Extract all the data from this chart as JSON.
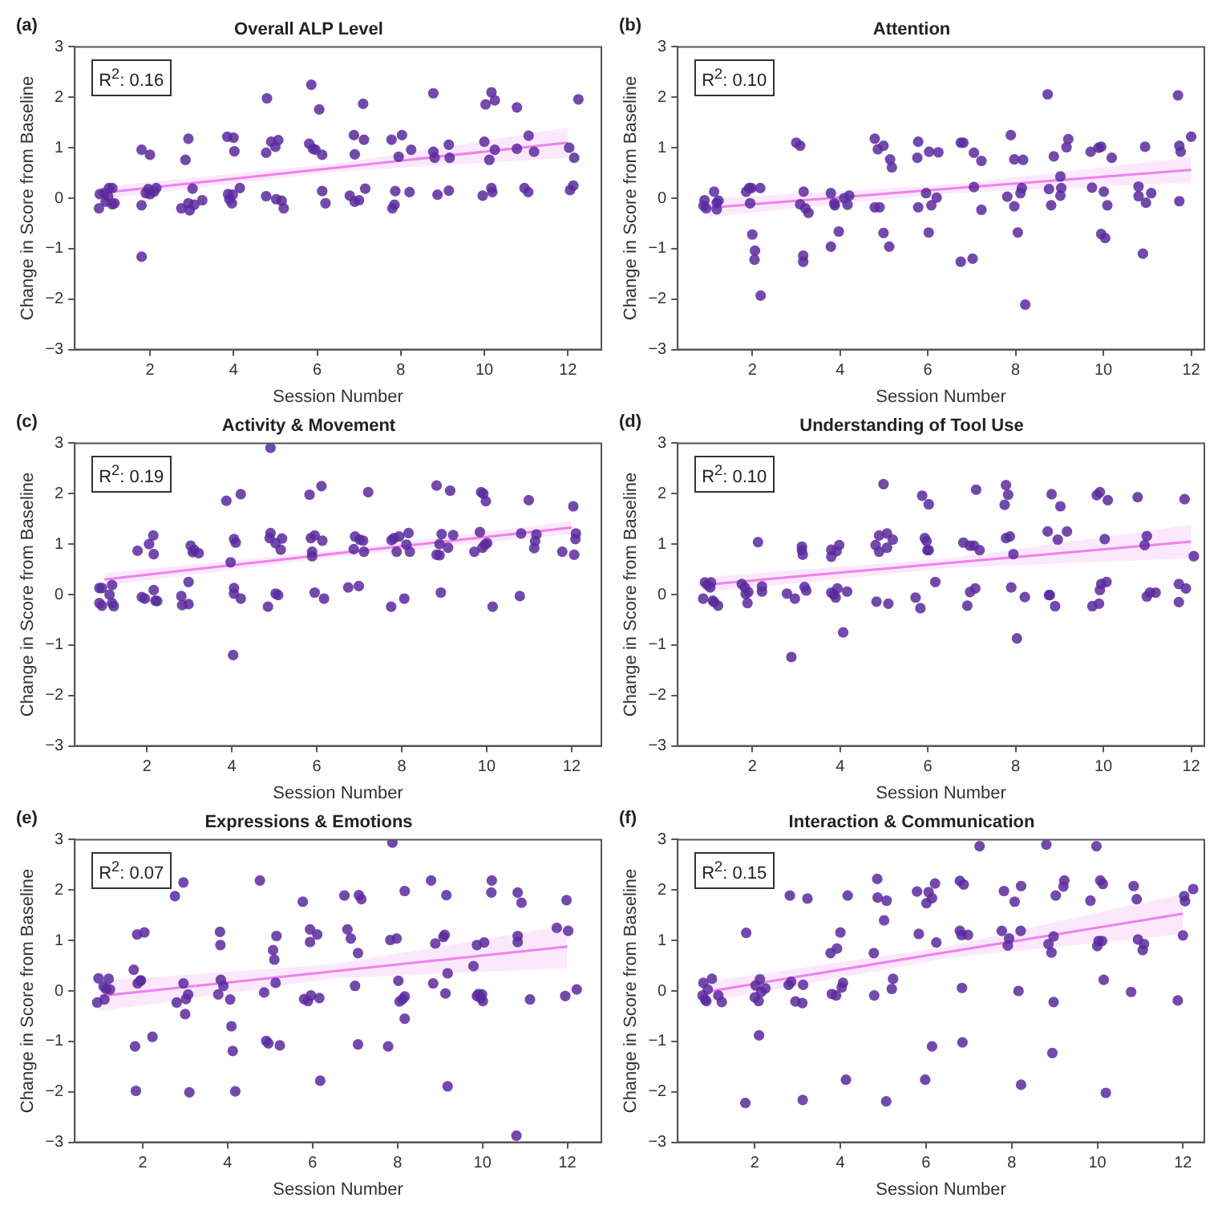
{
  "chart_data": [
    {
      "type": "scatter",
      "title": "Overall ALP Level",
      "xlabel": "Session Number",
      "ylabel": "Change in Score from Baseline",
      "annotations": [
        "(a)",
        "R$^{2}$: 0.16"
      ],
      "xlim": [
        0.2,
        12.8
      ],
      "ylim": [
        -3,
        3
      ],
      "xticks": [
        2,
        4,
        6,
        8,
        10,
        12
      ],
      "yticks": [
        -3,
        -2,
        -1,
        0,
        1,
        2,
        3
      ],
      "marker": "circle",
      "series": [
        {
          "color": "#5b2a9e",
          "x": [
            0.78,
            0.8,
            0.9,
            0.94,
            1.0,
            1.02,
            1.1,
            1.1,
            1.15,
            1.8,
            1.8,
            1.8,
            1.9,
            1.96,
            2.0,
            2.0,
            2.1,
            2.15,
            2.75,
            2.85,
            2.92,
            2.92,
            2.95,
            3.02,
            3.06,
            3.25,
            3.85,
            3.87,
            3.9,
            3.96,
            3.98,
            4.0,
            4.02,
            4.15,
            4.8,
            4.78,
            4.78,
            4.9,
            5.0,
            5.02,
            5.07,
            5.15,
            5.2,
            5.86,
            5.81,
            5.9,
            5.96,
            6.05,
            6.12,
            6.12,
            6.2,
            6.78,
            6.88,
            6.9,
            6.9,
            7.0,
            7.1,
            7.12,
            7.15,
            7.78,
            7.8,
            7.85,
            7.87,
            7.95,
            8.03,
            8.25,
            8.21,
            8.78,
            8.78,
            8.81,
            8.88,
            9.15,
            9.17,
            9.15,
            10.0,
            9.96,
            10.03,
            10.12,
            10.17,
            10.19,
            10.17,
            10.25,
            10.25,
            10.78,
            10.78,
            10.96,
            11.06,
            11.05,
            11.19,
            12.03,
            12.05,
            12.13,
            12.15,
            12.25
          ],
          "values": [
            -0.2,
            0.08,
            0.1,
            -0.07,
            0.03,
            0.2,
            0.2,
            -0.12,
            -0.1,
            0.96,
            -0.14,
            -1.16,
            0.1,
            0.18,
            0.86,
            0.08,
            0.13,
            0.2,
            -0.2,
            0.76,
            1.18,
            -0.1,
            -0.24,
            0.19,
            -0.13,
            -0.04,
            1.22,
            0.08,
            -0.02,
            -0.1,
            0.07,
            1.2,
            0.93,
            0.2,
            1.98,
            0.9,
            0.04,
            1.12,
            1.02,
            -0.02,
            1.15,
            -0.05,
            -0.2,
            2.25,
            1.08,
            0.98,
            0.96,
            1.76,
            0.86,
            0.14,
            -0.1,
            0.05,
            1.25,
            0.87,
            -0.07,
            -0.04,
            1.87,
            1.16,
            0.19,
            1.16,
            -0.2,
            -0.13,
            0.14,
            0.82,
            1.25,
            0.96,
            0.12,
            2.08,
            0.92,
            0.8,
            0.07,
            1.06,
            0.8,
            0.15,
            1.12,
            0.05,
            1.86,
            0.76,
            0.2,
            0.12,
            2.1,
            1.94,
            0.96,
            1.8,
            0.98,
            0.2,
            1.24,
            0.12,
            0.92,
            1.0,
            0.16,
            0.25,
            0.8,
            1.96
          ]
        },
        {
          "type": "line",
          "color": "#ee82ee",
          "x": [
            1,
            6.5,
            12
          ],
          "marker": "none",
          "values": [
            0.12,
            0.61,
            1.1
          ],
          "lower": [
            0.0,
            0.53,
            0.8
          ],
          "upper": [
            0.24,
            0.69,
            1.4
          ]
        }
      ]
    },
    {
      "type": "scatter",
      "title": "Attention",
      "xlabel": "Session Number",
      "ylabel": "Change in Score from Baseline",
      "annotations": [
        "(b)",
        "R$^{2}$: 0.10"
      ],
      "xlim": [
        0.3,
        12.3
      ],
      "ylim": [
        -3,
        3
      ],
      "xticks": [
        2,
        4,
        6,
        8,
        10,
        12
      ],
      "yticks": [
        -3,
        -2,
        -1,
        0,
        1,
        2,
        3
      ],
      "marker": "circle",
      "series": [
        {
          "color": "#5b2a9e",
          "x": [
            0.91,
            0.89,
            0.95,
            1.13,
            1.19,
            1.23,
            1.19,
            1.86,
            1.93,
            1.98,
            1.95,
            2.0,
            2.06,
            2.05,
            2.18,
            2.19,
            3.0,
            3.09,
            3.09,
            3.17,
            3.16,
            3.16,
            3.21,
            3.28,
            3.79,
            3.79,
            3.87,
            3.88,
            3.97,
            4.09,
            4.17,
            4.21,
            4.79,
            4.79,
            4.86,
            4.9,
            4.99,
            4.99,
            5.12,
            5.14,
            5.18,
            5.76,
            5.78,
            5.78,
            5.96,
            6.02,
            6.03,
            6.08,
            6.2,
            6.24,
            6.75,
            6.81,
            6.75,
            7.02,
            7.05,
            7.05,
            7.22,
            7.22,
            7.81,
            7.89,
            7.97,
            7.97,
            8.05,
            8.11,
            8.14,
            8.17,
            8.22,
            8.73,
            8.76,
            8.81,
            8.87,
            9.02,
            9.02,
            9.04,
            9.16,
            9.2,
            9.71,
            9.74,
            9.89,
            9.95,
            9.95,
            10.01,
            10.04,
            10.09,
            10.19,
            10.8,
            10.8,
            10.9,
            10.95,
            10.97,
            11.09,
            11.7,
            11.73,
            11.76,
            11.73,
            12.0
          ],
          "values": [
            -0.04,
            -0.15,
            -0.2,
            0.13,
            -0.09,
            -0.05,
            -0.22,
            0.13,
            0.2,
            0.2,
            -0.1,
            -0.72,
            -1.04,
            -1.22,
            0.2,
            -1.93,
            1.1,
            1.04,
            -0.12,
            0.13,
            -1.14,
            -1.26,
            -0.2,
            -0.29,
            -0.96,
            0.1,
            -0.1,
            -0.14,
            -0.66,
            0.0,
            -0.13,
            0.05,
            1.18,
            -0.18,
            0.97,
            -0.18,
            1.04,
            -0.69,
            -0.96,
            0.77,
            0.61,
            0.8,
            1.12,
            -0.18,
            0.1,
            -0.68,
            0.92,
            -0.14,
            0.01,
            0.91,
            1.1,
            1.1,
            -1.26,
            -1.2,
            0.9,
            0.22,
            0.74,
            -0.23,
            0.03,
            1.25,
            0.77,
            -0.16,
            -0.68,
            0.1,
            0.2,
            0.76,
            -2.11,
            2.06,
            0.18,
            -0.14,
            0.83,
            0.43,
            0.05,
            0.2,
            1.01,
            1.17,
            0.92,
            0.21,
            1.0,
            1.02,
            -0.71,
            0.13,
            -0.79,
            -0.14,
            0.8,
            0.23,
            0.04,
            -1.1,
            1.02,
            -0.09,
            0.1,
            2.04,
            1.04,
            0.92,
            -0.06,
            1.22
          ]
        },
        {
          "type": "line",
          "color": "#ee82ee",
          "x": [
            1,
            6.5,
            12
          ],
          "marker": "none",
          "values": [
            -0.19,
            0.19,
            0.56
          ],
          "lower": [
            -0.37,
            0.1,
            0.31
          ],
          "upper": [
            -0.01,
            0.27,
            0.81
          ]
        }
      ]
    },
    {
      "type": "scatter",
      "title": "Activity & Movement",
      "xlabel": "Session Number",
      "ylabel": "Change in Score from Baseline",
      "annotations": [
        "(c)",
        "R$^{2}$: 0.19"
      ],
      "xlim": [
        0.3,
        12.7
      ],
      "ylim": [
        -3,
        3
      ],
      "xticks": [
        2,
        4,
        6,
        8,
        10,
        12
      ],
      "yticks": [
        -3,
        -2,
        -1,
        0,
        1,
        2,
        3
      ],
      "marker": "circle",
      "series": [
        {
          "color": "#5b2a9e",
          "x": [
            0.88,
            0.94,
            0.88,
            0.94,
            1.12,
            1.18,
            1.18,
            1.22,
            1.78,
            1.88,
            1.95,
            2.05,
            2.15,
            2.16,
            2.16,
            2.2,
            2.24,
            2.81,
            2.83,
            2.98,
            2.98,
            3.03,
            3.08,
            3.11,
            3.22,
            3.87,
            3.97,
            4.05,
            4.09,
            4.05,
            4.05,
            4.03,
            4.21,
            4.21,
            4.85,
            4.91,
            4.91,
            4.89,
            5.03,
            5.03,
            5.09,
            5.15,
            5.18,
            5.83,
            5.86,
            5.89,
            5.89,
            5.95,
            5.95,
            6.11,
            6.13,
            6.17,
            6.74,
            6.87,
            6.9,
            6.99,
            7.01,
            7.09,
            7.11,
            7.21,
            7.75,
            7.76,
            7.82,
            7.88,
            7.94,
            8.06,
            8.11,
            8.16,
            8.19,
            8.82,
            8.82,
            8.89,
            8.89,
            8.92,
            8.94,
            9.09,
            9.14,
            9.21,
            9.71,
            9.84,
            9.87,
            9.9,
            9.92,
            9.96,
            9.98,
            10.01,
            10.14,
            10.78,
            10.81,
            10.99,
            11.12,
            11.14,
            11.17,
            11.78,
            12.04,
            12.06,
            12.09,
            12.1
          ],
          "values": [
            0.13,
            0.13,
            -0.17,
            -0.22,
            0.0,
            0.19,
            -0.17,
            -0.23,
            0.87,
            -0.05,
            -0.08,
            1.0,
            1.17,
            0.8,
            0.09,
            -0.12,
            -0.13,
            -0.03,
            -0.21,
            0.25,
            -0.19,
            0.97,
            0.84,
            0.89,
            0.82,
            1.86,
            0.64,
            1.1,
            1.03,
            0.13,
            0.02,
            -1.2,
            1.99,
            -0.08,
            -0.24,
            2.91,
            1.22,
            1.12,
            1.02,
            0.02,
            -0.01,
            0.89,
            1.11,
            1.98,
            1.12,
            0.85,
            0.76,
            1.17,
            0.04,
            2.15,
            1.07,
            -0.08,
            0.14,
            0.9,
            1.15,
            0.17,
            1.09,
            1.07,
            0.85,
            2.03,
            -0.24,
            1.08,
            1.12,
            0.85,
            1.15,
            -0.08,
            0.99,
            1.22,
            0.85,
            2.16,
            0.79,
            0.78,
            1.0,
            0.04,
            1.2,
            0.93,
            2.06,
            1.18,
            0.85,
            1.24,
            2.03,
            0.93,
            2.0,
            0.99,
            1.85,
            1.02,
            -0.24,
            -0.03,
            1.21,
            1.87,
            0.92,
            1.06,
            1.19,
            0.85,
            1.75,
            0.79,
            1.1,
            1.21
          ]
        },
        {
          "type": "line",
          "color": "#ee82ee",
          "x": [
            1,
            6.5,
            12
          ],
          "marker": "none",
          "values": [
            0.3,
            0.82,
            1.33
          ],
          "lower": [
            0.18,
            0.75,
            1.2
          ],
          "upper": [
            0.42,
            0.88,
            1.46
          ]
        }
      ]
    },
    {
      "type": "scatter",
      "title": "Understanding of Tool Use",
      "xlabel": "Session Number",
      "ylabel": "Change in Score from Baseline",
      "annotations": [
        "(d)",
        "R$^{2}$: 0.10"
      ],
      "xlim": [
        0.3,
        12.3
      ],
      "ylim": [
        -3,
        3
      ],
      "xticks": [
        2,
        4,
        6,
        8,
        10,
        12
      ],
      "yticks": [
        -3,
        -2,
        -1,
        0,
        1,
        2,
        3
      ],
      "marker": "circle",
      "series": [
        {
          "color": "#5b2a9e",
          "x": [
            0.88,
            0.92,
            0.98,
            1.04,
            1.06,
            1.1,
            1.13,
            1.22,
            1.76,
            1.83,
            1.85,
            1.89,
            1.91,
            2.13,
            2.22,
            2.22,
            2.79,
            2.89,
            2.97,
            3.13,
            3.13,
            3.15,
            3.19,
            3.23,
            3.8,
            3.8,
            3.8,
            3.86,
            3.9,
            3.92,
            3.94,
            3.98,
            4.07,
            4.16,
            4.81,
            4.83,
            4.89,
            4.89,
            4.99,
            5.07,
            5.07,
            5.1,
            5.2,
            5.72,
            5.83,
            5.87,
            5.93,
            5.97,
            5.99,
            6.02,
            6.02,
            6.17,
            6.81,
            6.9,
            6.96,
            6.96,
            7.05,
            7.08,
            7.1,
            7.18,
            7.75,
            7.78,
            7.78,
            7.83,
            7.87,
            7.9,
            7.95,
            8.03,
            8.21,
            8.73,
            8.76,
            8.78,
            8.82,
            8.9,
            8.96,
            9.02,
            9.17,
            9.75,
            9.85,
            9.9,
            9.92,
            9.92,
            9.95,
            10.03,
            10.07,
            10.1,
            10.78,
            10.94,
            10.99,
            10.99,
            11.06,
            11.19,
            11.72,
            11.72,
            11.85,
            11.88,
            12.06
          ],
          "values": [
            -0.08,
            0.24,
            0.19,
            0.14,
            0.24,
            -0.12,
            -0.15,
            -0.22,
            0.21,
            0.14,
            0.01,
            -0.17,
            0.05,
            1.04,
            0.16,
            0.06,
            0.02,
            -1.24,
            -0.08,
            0.95,
            0.88,
            0.79,
            0.15,
            0.08,
            0.89,
            0.75,
            0.04,
            0.0,
            -0.06,
            0.86,
            0.12,
            0.98,
            -0.75,
            0.06,
            0.98,
            -0.14,
            1.17,
            0.85,
            2.19,
            1.21,
            0.93,
            -0.18,
            1.09,
            -0.06,
            -0.27,
            1.96,
            1.12,
            1.06,
            0.88,
            0.88,
            1.79,
            0.25,
            1.03,
            -0.22,
            0.97,
            0.05,
            0.97,
            0.12,
            2.08,
            0.88,
            1.78,
            2.17,
            1.12,
            1.98,
            1.15,
            0.14,
            0.8,
            -0.87,
            -0.05,
            1.25,
            -0.01,
            -0.01,
            1.99,
            -0.23,
            1.09,
            1.75,
            1.25,
            -0.23,
            1.97,
            -0.18,
            2.03,
            0.09,
            0.21,
            1.1,
            0.25,
            1.87,
            1.93,
            0.98,
            1.16,
            -0.04,
            0.04,
            0.04,
            -0.15,
            0.21,
            1.89,
            0.12,
            0.76
          ]
        },
        {
          "type": "line",
          "color": "#ee82ee",
          "x": [
            1,
            6.5,
            12
          ],
          "marker": "none",
          "values": [
            0.2,
            0.63,
            1.05
          ],
          "lower": [
            0.05,
            0.53,
            0.72
          ],
          "upper": [
            0.35,
            0.72,
            1.38
          ]
        }
      ]
    },
    {
      "type": "scatter",
      "title": "Expressions & Emotions",
      "xlabel": "Session Number",
      "ylabel": "Change in Score from Baseline",
      "annotations": [
        "(e)",
        "R$^{2}$: 0.07"
      ],
      "xlim": [
        0.4,
        12.8
      ],
      "ylim": [
        -3,
        3
      ],
      "xticks": [
        2,
        4,
        6,
        8,
        10,
        12
      ],
      "yticks": [
        -3,
        -2,
        -1,
        0,
        1,
        2,
        3
      ],
      "marker": "circle",
      "series": [
        {
          "color": "#5b2a9e",
          "x": [
            0.96,
            0.93,
            1.08,
            1.1,
            1.14,
            1.2,
            1.23,
            1.79,
            1.82,
            1.84,
            1.87,
            1.88,
            1.94,
            1.96,
            2.04,
            2.23,
            2.76,
            2.8,
            2.96,
            2.96,
            3.0,
            3.02,
            3.07,
            3.1,
            3.78,
            3.82,
            3.83,
            3.84,
            3.9,
            4.06,
            4.09,
            4.12,
            4.18,
            4.76,
            4.86,
            4.91,
            4.96,
            5.07,
            5.1,
            5.13,
            5.15,
            5.23,
            5.77,
            5.8,
            5.89,
            5.94,
            5.94,
            5.96,
            6.11,
            6.16,
            6.18,
            6.75,
            6.82,
            6.9,
            7.0,
            7.07,
            7.07,
            7.09,
            7.15,
            7.78,
            7.83,
            7.88,
            7.98,
            8.02,
            8.05,
            8.12,
            8.17,
            8.17,
            8.17,
            8.79,
            8.84,
            8.89,
            9.08,
            9.11,
            9.13,
            9.15,
            9.18,
            9.18,
            9.79,
            9.87,
            9.87,
            9.91,
            9.96,
            9.99,
            10.01,
            10.04,
            10.22,
            10.21,
            10.8,
            10.83,
            10.83,
            10.83,
            10.92,
            11.12,
            11.75,
            11.95,
            11.98,
            12.02,
            12.22
          ],
          "values": [
            0.25,
            -0.23,
            0.09,
            -0.17,
            0.04,
            0.24,
            0.03,
            0.42,
            -1.1,
            -1.98,
            1.12,
            0.15,
            0.2,
            0.21,
            1.16,
            -0.91,
            1.88,
            -0.23,
            2.15,
            0.15,
            -0.46,
            -0.16,
            -0.07,
            -2.01,
            -0.07,
            1.17,
            0.91,
            0.22,
            0.1,
            -0.17,
            -0.7,
            -1.19,
            -1.99,
            2.19,
            -0.03,
            -0.99,
            -1.04,
            0.81,
            0.62,
            0.16,
            1.09,
            -1.08,
            1.77,
            -0.16,
            -0.2,
            1.22,
            0.97,
            -0.09,
            1.12,
            -0.14,
            -1.78,
            1.89,
            1.22,
            1.04,
            0.1,
            0.75,
            -1.06,
            1.9,
            1.82,
            -1.1,
            1.01,
            2.94,
            1.04,
            0.2,
            -0.21,
            -0.16,
            1.98,
            -0.11,
            -0.55,
            2.19,
            0.15,
            0.94,
            1.07,
            1.11,
            -0.05,
            1.9,
            -1.89,
            0.35,
            0.49,
            0.91,
            -0.1,
            -0.06,
            -0.14,
            -0.07,
            -0.2,
            0.96,
            2.19,
            1.95,
            -2.87,
            1.95,
            1.09,
            0.97,
            1.75,
            -0.17,
            1.25,
            -0.1,
            1.8,
            1.19,
            0.03
          ]
        },
        {
          "type": "line",
          "color": "#ee82ee",
          "x": [
            1,
            6.5,
            12
          ],
          "marker": "none",
          "values": [
            -0.1,
            0.39,
            0.88
          ],
          "lower": [
            -0.4,
            0.25,
            0.45
          ],
          "upper": [
            0.2,
            0.53,
            1.3
          ]
        }
      ]
    },
    {
      "type": "scatter",
      "title": "Interaction & Communication",
      "xlabel": "Session Number",
      "ylabel": "Change in Score from Baseline",
      "annotations": [
        "(f)",
        "R$^{2}$: 0.15"
      ],
      "xlim": [
        0.2,
        12.5
      ],
      "ylim": [
        -3,
        3
      ],
      "xticks": [
        2,
        4,
        6,
        8,
        10,
        12
      ],
      "yticks": [
        -3,
        -2,
        -1,
        0,
        1,
        2,
        3
      ],
      "marker": "circle",
      "series": [
        {
          "color": "#5b2a9e",
          "x": [
            0.78,
            0.8,
            0.84,
            0.87,
            0.9,
            1.0,
            1.15,
            1.23,
            1.8,
            1.78,
            2.0,
            2.02,
            2.09,
            2.1,
            2.12,
            2.15,
            2.25,
            2.79,
            2.82,
            2.85,
            2.95,
            3.11,
            3.12,
            3.13,
            3.23,
            3.8,
            3.77,
            3.9,
            3.92,
            4.0,
            4.03,
            4.06,
            4.13,
            4.17,
            4.79,
            4.78,
            4.86,
            4.87,
            5.02,
            5.08,
            5.07,
            5.2,
            5.23,
            5.79,
            5.83,
            5.98,
            6.01,
            6.06,
            6.14,
            6.14,
            6.21,
            6.24,
            6.79,
            6.79,
            6.83,
            6.84,
            6.85,
            6.88,
            6.98,
            7.25,
            7.77,
            7.82,
            7.91,
            7.94,
            8.07,
            8.16,
            8.22,
            8.21,
            8.22,
            8.81,
            8.86,
            8.93,
            8.95,
            8.98,
            8.98,
            9.03,
            9.21,
            9.23,
            9.84,
            9.98,
            10.0,
            10.03,
            10.07,
            10.11,
            10.13,
            10.15,
            10.2,
            10.79,
            10.85,
            10.92,
            10.95,
            11.06,
            11.09,
            11.88,
            12.0,
            12.03,
            12.05,
            12.24
          ],
          "values": [
            -0.09,
            0.16,
            -0.17,
            -0.2,
            0.03,
            0.24,
            -0.09,
            -0.22,
            1.15,
            -2.22,
            -0.13,
            0.11,
            -0.2,
            -0.88,
            0.23,
            -0.02,
            0.05,
            0.12,
            1.89,
            0.18,
            -0.21,
            -0.24,
            -2.16,
            0.12,
            1.83,
            -0.06,
            0.75,
            -0.09,
            0.84,
            1.16,
            0.07,
            0.16,
            -1.76,
            1.89,
            -0.09,
            0.75,
            2.22,
            1.85,
            1.4,
            1.79,
            -2.19,
            0.04,
            0.24,
            1.97,
            1.13,
            -1.76,
            1.74,
            1.96,
            1.84,
            -1.1,
            2.13,
            0.96,
            2.18,
            1.19,
            1.11,
            0.06,
            -1.02,
            2.11,
            1.11,
            2.87,
            1.19,
            1.98,
            0.9,
            1.04,
            1.77,
            0.0,
            2.08,
            1.19,
            -1.86,
            2.9,
            0.93,
            0.76,
            -1.23,
            -0.22,
            1.08,
            1.89,
            2.07,
            2.19,
            1.79,
            2.87,
            0.89,
            0.99,
            2.19,
            0.99,
            2.12,
            0.22,
            -2.02,
            -0.02,
            2.08,
            1.82,
            1.02,
            0.81,
            0.93,
            -0.19,
            1.1,
            1.88,
            1.78,
            2.02
          ]
        },
        {
          "type": "line",
          "color": "#ee82ee",
          "x": [
            1,
            6.5,
            12
          ],
          "marker": "none",
          "values": [
            0.0,
            0.77,
            1.53
          ],
          "lower": [
            -0.2,
            0.65,
            1.13
          ],
          "upper": [
            0.2,
            0.88,
            1.93
          ]
        }
      ]
    }
  ]
}
